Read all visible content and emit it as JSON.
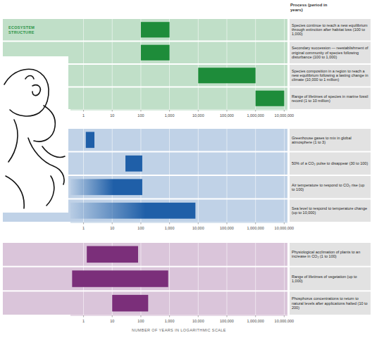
{
  "chart_data": [
    {
      "type": "bar",
      "orientation": "horizontal",
      "title": "ECOSYSTEM STRUCTURE",
      "y_label": "Process (period in years)",
      "log": "x",
      "grid": true,
      "color": "#1e8c3a",
      "categories": [
        "Species continue to reach a new equilibrium through extinction after habitat loss (100 to 1,000)",
        "Secondary succession — reestablishment of original community of species following disturbance (100 to 1,000)",
        "Species composition in a region to reach a new equilibrium following a lasting change in climate (10,000 to 1 million)",
        "Range of lifetimes of species in marine fossil record (1 to 10 million)"
      ],
      "values": [
        [
          100,
          1000
        ],
        [
          100,
          1000
        ],
        [
          10000,
          1000000
        ],
        [
          1000000,
          10000000
        ]
      ],
      "xlim": [
        0.35,
        13000000
      ],
      "xticks": [
        1,
        10,
        100,
        {
          "value": 1000,
          "label": "1,000"
        },
        {
          "value": 10000,
          "label": "10,000"
        },
        {
          "value": 100000,
          "label": "100,000"
        },
        {
          "value": 1000000,
          "label": "1,000,000"
        },
        {
          "value": 10000000,
          "label": "10,000,000"
        }
      ]
    },
    {
      "type": "bar",
      "orientation": "horizontal",
      "log": "x",
      "grid": true,
      "color": "#1f5fa8",
      "categories": [
        "Greenhouse gases to mix in global atmosphere (1 to 3)",
        "50% of a CO₂ pulse to disappear (30 to 100)",
        "Air temperature to respond to CO₂ rise (up to 100)",
        "Sea level to respond to temperature change (up to 10,000)"
      ],
      "values": [
        [
          1.2,
          2.4
        ],
        [
          29,
          112
        ],
        [
          0.35,
          112
        ],
        [
          0.35,
          8000
        ]
      ],
      "xlim": [
        0.35,
        13000000
      ],
      "xticks": [
        1,
        10,
        100,
        {
          "value": 1000,
          "label": "1,000"
        },
        {
          "value": 10000,
          "label": "10,000"
        },
        {
          "value": 100000,
          "label": "100,000"
        },
        {
          "value": 1000000,
          "label": "1,000,000"
        },
        {
          "value": 10000000,
          "label": "10,000,000"
        }
      ]
    },
    {
      "type": "bar",
      "orientation": "horizontal",
      "x_label": "NUMBER OF YEARS IN LOGARITHMIC SCALE",
      "log": "x",
      "grid": true,
      "color": "#7b2f7a",
      "categories": [
        "Physiological acclimation of plants to an increase in CO₂ (1 to 100)",
        "Range of lifetimes of vegetation (up to 1,000)",
        "Phosphorus concentrations to return to natural levels after applications halted (10 to 200)"
      ],
      "values": [
        [
          1.3,
          80
        ],
        [
          0.4,
          900
        ],
        [
          10,
          180
        ]
      ],
      "xlim": [
        0.35,
        13000000
      ],
      "xticks": [
        1,
        10,
        100,
        {
          "value": 1000,
          "label": "1,000"
        },
        {
          "value": 10000,
          "label": "10,000"
        },
        {
          "value": 100000,
          "label": "100,000"
        },
        {
          "value": 1000000,
          "label": "1,000,000"
        },
        {
          "value": 10000000,
          "label": "10,000,000"
        }
      ]
    }
  ]
}
